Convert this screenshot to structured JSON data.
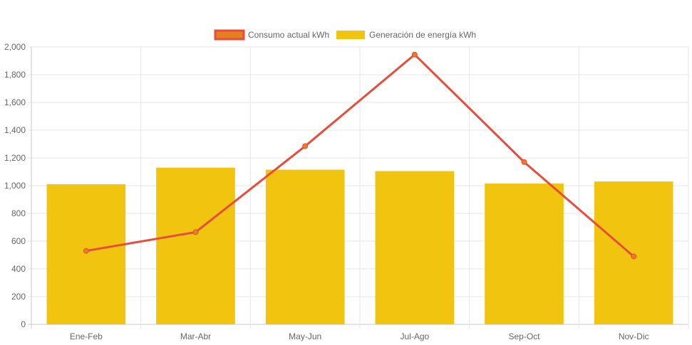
{
  "chart_data": {
    "type": "bar",
    "categories": [
      "Ene-Feb",
      "Mar-Abr",
      "May-Jun",
      "Jul-Ago",
      "Sep-Oct",
      "Nov-Dic"
    ],
    "series": [
      {
        "name": "Consumo actual kWh",
        "type": "line",
        "values": [
          530,
          665,
          1285,
          1945,
          1170,
          490
        ],
        "color": "#e74c3c",
        "point_color": "#e67e22"
      },
      {
        "name": "Generación de energía kWh",
        "type": "bar",
        "values": [
          1010,
          1130,
          1115,
          1105,
          1015,
          1030
        ],
        "color": "#f1c40f"
      }
    ],
    "ylim": [
      0,
      2000
    ],
    "yticks": [
      "0",
      "200",
      "400",
      "600",
      "800",
      "1,000",
      "1,200",
      "1,400",
      "1,600",
      "1,800",
      "2,000"
    ],
    "ytick_values": [
      0,
      200,
      400,
      600,
      800,
      1000,
      1200,
      1400,
      1600,
      1800,
      2000
    ],
    "grid": true,
    "legend_position": "top-center"
  }
}
